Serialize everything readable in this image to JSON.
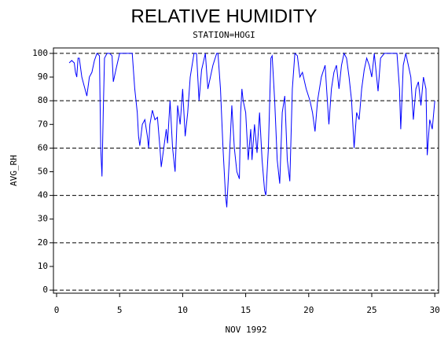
{
  "chart_data": {
    "type": "line",
    "title": "RELATIVE HUMIDITY",
    "subtitle": "STATION=HOGI",
    "ylabel": "AVG_RH",
    "xlabel": "NOV 1992",
    "color": "#0000ff",
    "xlim": [
      -0.25,
      30.3
    ],
    "xticks": [
      0,
      5,
      10,
      15,
      20,
      25,
      30
    ],
    "ylim": [
      -1.3,
      102.3
    ],
    "yticks": [
      0,
      10,
      20,
      30,
      40,
      50,
      60,
      70,
      80,
      90,
      100
    ],
    "grid_values": [
      0,
      20,
      40,
      60,
      80,
      100
    ],
    "x": [
      1.0,
      1.2,
      1.4,
      1.5,
      1.6,
      1.7,
      1.8,
      2.0,
      2.2,
      2.4,
      2.6,
      2.8,
      3.0,
      3.2,
      3.4,
      3.5,
      3.6,
      3.7,
      3.8,
      4.0,
      4.2,
      4.4,
      4.5,
      4.7,
      5.0,
      5.5,
      6.0,
      6.2,
      6.4,
      6.5,
      6.6,
      6.8,
      7.0,
      7.2,
      7.3,
      7.4,
      7.6,
      7.8,
      8.0,
      8.2,
      8.3,
      8.5,
      8.7,
      8.8,
      9.0,
      9.2,
      9.4,
      9.6,
      9.8,
      10.0,
      10.2,
      10.4,
      10.6,
      10.9,
      11.1,
      11.3,
      11.5,
      11.8,
      12.0,
      12.2,
      12.4,
      12.7,
      12.8,
      13.0,
      13.2,
      13.4,
      13.5,
      13.7,
      13.9,
      14.1,
      14.3,
      14.5,
      14.6,
      14.7,
      14.8,
      15.0,
      15.1,
      15.2,
      15.4,
      15.5,
      15.7,
      15.9,
      16.1,
      16.3,
      16.5,
      16.6,
      16.8,
      17.0,
      17.1,
      17.3,
      17.5,
      17.7,
      17.9,
      18.1,
      18.3,
      18.5,
      18.7,
      18.9,
      19.1,
      19.3,
      19.5,
      19.8,
      20.1,
      20.3,
      20.5,
      20.7,
      21.0,
      21.3,
      21.6,
      21.8,
      22.0,
      22.2,
      22.4,
      22.6,
      22.8,
      23.0,
      23.2,
      23.4,
      23.6,
      23.8,
      24.0,
      24.2,
      24.4,
      24.6,
      24.8,
      25.0,
      25.2,
      25.5,
      25.7,
      26.0,
      26.5,
      27.0,
      27.2,
      27.3,
      27.5,
      27.7,
      27.9,
      28.1,
      28.3,
      28.5,
      28.7,
      28.9,
      29.1,
      29.3,
      29.4,
      29.6,
      29.8,
      30.0
    ],
    "values": [
      96,
      97,
      96,
      92,
      90,
      98,
      98,
      90,
      86,
      82,
      90,
      92,
      97,
      100,
      99,
      60,
      48,
      75,
      98,
      100,
      100,
      99,
      88,
      93,
      100,
      100,
      100,
      85,
      75,
      65,
      61,
      70,
      72,
      65,
      60,
      70,
      76,
      72,
      73,
      60,
      52,
      60,
      68,
      62,
      80,
      60,
      50,
      78,
      70,
      85,
      65,
      75,
      90,
      100,
      100,
      80,
      93,
      100,
      85,
      90,
      95,
      100,
      100,
      85,
      60,
      40,
      35,
      55,
      78,
      60,
      50,
      47,
      75,
      85,
      80,
      75,
      65,
      55,
      68,
      55,
      70,
      58,
      75,
      55,
      42,
      40,
      60,
      98,
      99,
      80,
      55,
      45,
      75,
      82,
      55,
      46,
      85,
      100,
      99,
      90,
      92,
      85,
      80,
      75,
      67,
      80,
      90,
      95,
      70,
      85,
      92,
      95,
      85,
      95,
      100,
      98,
      90,
      80,
      60,
      75,
      72,
      85,
      93,
      98,
      95,
      90,
      100,
      84,
      98,
      100,
      100,
      100,
      85,
      68,
      95,
      100,
      95,
      90,
      72,
      85,
      88,
      78,
      90,
      85,
      57,
      72,
      68,
      80
    ]
  }
}
